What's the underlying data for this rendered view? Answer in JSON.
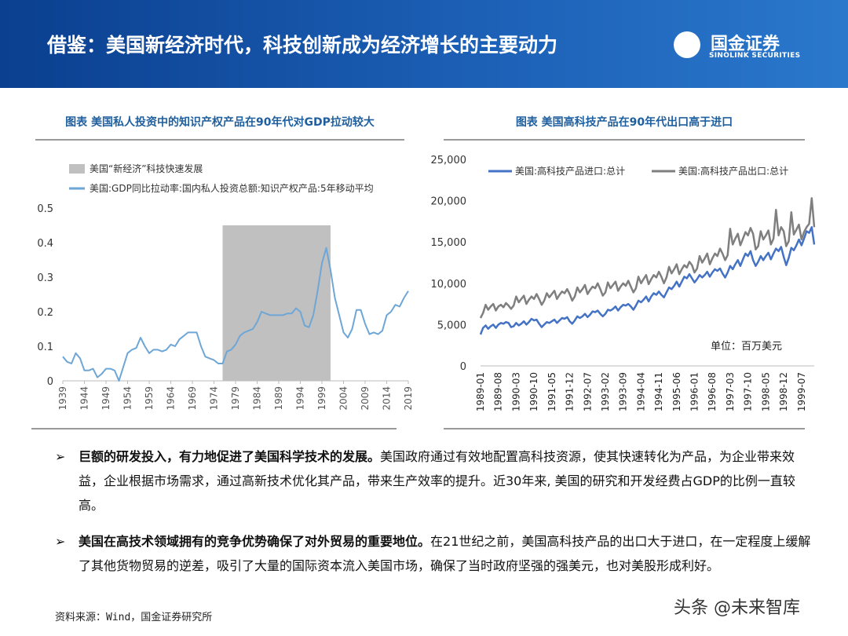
{
  "header": {
    "title": "借鉴：美国新经济时代，科技创新成为经济增长的主要动力",
    "logo_cn": "国金证券",
    "logo_en": "SINOLINK SECURITIES"
  },
  "chart_data": [
    {
      "type": "line",
      "title": "图表 美国私人投资中的知识产权产品在90年代对GDP拉动较大",
      "x": [
        1939,
        1940,
        1941,
        1942,
        1943,
        1944,
        1945,
        1946,
        1947,
        1948,
        1949,
        1950,
        1951,
        1952,
        1953,
        1954,
        1955,
        1956,
        1957,
        1958,
        1959,
        1960,
        1961,
        1962,
        1963,
        1964,
        1965,
        1966,
        1967,
        1968,
        1969,
        1970,
        1971,
        1972,
        1973,
        1974,
        1975,
        1976,
        1977,
        1978,
        1979,
        1980,
        1981,
        1982,
        1983,
        1984,
        1985,
        1986,
        1987,
        1988,
        1989,
        1990,
        1991,
        1992,
        1993,
        1994,
        1995,
        1996,
        1997,
        1998,
        1999,
        2000,
        2001,
        2002,
        2003,
        2004,
        2005,
        2006,
        2007,
        2008,
        2009,
        2010,
        2011,
        2012,
        2013,
        2014,
        2015,
        2016,
        2017,
        2018,
        2019
      ],
      "series": [
        {
          "name": "美国:GDP同比拉动率:国内私人投资总额:知识产权产品:5年移动平均",
          "color": "#6ea6d6",
          "values": [
            0.07,
            0.055,
            0.05,
            0.08,
            0.065,
            0.03,
            0.03,
            0.035,
            0.01,
            0.02,
            0.035,
            0.035,
            0.03,
            0.0,
            0.04,
            0.08,
            0.09,
            0.095,
            0.125,
            0.1,
            0.08,
            0.09,
            0.09,
            0.085,
            0.09,
            0.105,
            0.1,
            0.12,
            0.13,
            0.14,
            0.14,
            0.14,
            0.1,
            0.07,
            0.065,
            0.06,
            0.05,
            0.05,
            0.085,
            0.09,
            0.105,
            0.13,
            0.14,
            0.145,
            0.15,
            0.17,
            0.2,
            0.195,
            0.19,
            0.19,
            0.19,
            0.19,
            0.195,
            0.195,
            0.21,
            0.2,
            0.16,
            0.155,
            0.19,
            0.26,
            0.34,
            0.385,
            0.32,
            0.24,
            0.19,
            0.14,
            0.125,
            0.15,
            0.205,
            0.205,
            0.165,
            0.135,
            0.14,
            0.135,
            0.145,
            0.19,
            0.2,
            0.22,
            0.215,
            0.24,
            0.26
          ]
        }
      ],
      "shade": {
        "name": "美国“新经济”科技快速发展",
        "color": "#c0c0c0",
        "x": [
          1976,
          2001
        ],
        "y": [
          0,
          0.45
        ]
      },
      "xlim": [
        1939,
        2019
      ],
      "xticks": [
        1939,
        1944,
        1949,
        1954,
        1959,
        1964,
        1969,
        1974,
        1979,
        1984,
        1989,
        1994,
        1999,
        2004,
        2009,
        2014,
        2019
      ],
      "ylim": [
        0,
        0.5
      ],
      "yticks": [
        0,
        0.1,
        0.2,
        0.3,
        0.4,
        0.5
      ]
    },
    {
      "type": "line",
      "title": "图表 美国高科技产品在90年代出口高于进口",
      "categories": [
        "1989-01",
        null,
        null,
        null,
        null,
        null,
        null,
        "1989-08",
        null,
        null,
        null,
        null,
        null,
        null,
        "1990-03",
        null,
        null,
        null,
        null,
        null,
        null,
        "1990-10",
        null,
        null,
        null,
        null,
        null,
        null,
        "1991-05",
        null,
        null,
        null,
        null,
        null,
        null,
        "1991-12",
        null,
        null,
        null,
        null,
        null,
        null,
        "1992-07",
        null,
        null,
        null,
        null,
        null,
        null,
        "1993-02",
        null,
        null,
        null,
        null,
        null,
        null,
        "1993-09",
        null,
        null,
        null,
        null,
        null,
        null,
        "1994-04",
        null,
        null,
        null,
        null,
        null,
        null,
        "1994-11",
        null,
        null,
        null,
        null,
        null,
        null,
        "1995-06",
        null,
        null,
        null,
        null,
        null,
        null,
        "1996-01",
        null,
        null,
        null,
        null,
        null,
        null,
        "1996-08",
        null,
        null,
        null,
        null,
        null,
        null,
        "1997-03",
        null,
        null,
        null,
        null,
        null,
        null,
        "1997-10",
        null,
        null,
        null,
        null,
        null,
        null,
        "1998-05",
        null,
        null,
        null,
        null,
        null,
        null,
        "1998-12",
        null,
        null,
        null,
        null,
        null,
        null,
        "1999-07",
        null,
        null,
        null,
        null,
        null
      ],
      "series": [
        {
          "name": "美国:高科技产品进口:总计",
          "color": "#4472c4",
          "values": [
            3800,
            4600,
            4900,
            4500,
            4800,
            5000,
            4600,
            5000,
            5200,
            5100,
            5300,
            5200,
            4700,
            4800,
            5200,
            4900,
            5100,
            5400,
            5000,
            5300,
            5700,
            5500,
            5600,
            5100,
            4700,
            5000,
            5300,
            5200,
            5400,
            5600,
            5200,
            5500,
            5800,
            5700,
            5900,
            5400,
            5100,
            5500,
            6000,
            5800,
            6000,
            6300,
            5900,
            6200,
            6600,
            6500,
            6700,
            6300,
            6000,
            6300,
            6800,
            6700,
            6900,
            7200,
            6700,
            7100,
            7400,
            7300,
            7500,
            7200,
            6800,
            7300,
            7900,
            7700,
            8000,
            8400,
            7800,
            8400,
            8800,
            8600,
            9000,
            8600,
            8300,
            8900,
            9500,
            9300,
            9700,
            10200,
            9600,
            10200,
            10800,
            10600,
            11100,
            10600,
            10100,
            10500,
            11000,
            10700,
            11000,
            11400,
            10800,
            11300,
            11700,
            11500,
            11800,
            11200,
            10700,
            11300,
            12100,
            11700,
            12300,
            12800,
            12100,
            12900,
            13600,
            13300,
            13900,
            12800,
            12100,
            12600,
            13300,
            12800,
            13300,
            13700,
            12900,
            13600,
            14200,
            13900,
            14400,
            13200,
            12200,
            13100,
            14300,
            14000,
            14600,
            15300,
            14600,
            15400,
            16300,
            16100,
            16800,
            14700
          ]
        },
        {
          "name": "美国:高科技产品出口:总计",
          "color": "#7f7f7f",
          "values": [
            5800,
            6400,
            7400,
            6800,
            7200,
            7500,
            6700,
            7200,
            7400,
            7100,
            7600,
            7300,
            6900,
            7300,
            8400,
            7700,
            8100,
            8500,
            7500,
            8000,
            8400,
            8100,
            8700,
            8100,
            7400,
            7900,
            8800,
            8300,
            8700,
            9100,
            8100,
            8600,
            9000,
            8800,
            9300,
            8700,
            7900,
            8400,
            9500,
            8900,
            9300,
            9800,
            8700,
            9200,
            9600,
            9400,
            10000,
            9300,
            8500,
            8900,
            10100,
            9400,
            9800,
            10200,
            9100,
            9600,
            10000,
            9700,
            10300,
            9600,
            8900,
            9400,
            10800,
            10000,
            10500,
            11000,
            9900,
            10500,
            11000,
            10700,
            11400,
            10800,
            10000,
            10700,
            12000,
            11200,
            11700,
            12300,
            11100,
            11700,
            12200,
            11900,
            12600,
            12200,
            11300,
            11800,
            13300,
            12500,
            13000,
            13600,
            12300,
            13000,
            13600,
            13300,
            14200,
            13600,
            12800,
            13400,
            16600,
            14700,
            15400,
            16000,
            14600,
            15400,
            16200,
            15800,
            16700,
            16000,
            14100,
            14500,
            16300,
            15300,
            15800,
            16400,
            14700,
            15400,
            18900,
            15800,
            16800,
            16300,
            14500,
            15100,
            18600,
            15900,
            16500,
            17100,
            15300,
            16200,
            16800,
            17200,
            20300,
            16800
          ]
        }
      ],
      "ylim": [
        0,
        25000
      ],
      "yticks": [
        0,
        {
          "value": 5000,
          "label": "5,000"
        },
        {
          "value": 10000,
          "label": "10,000"
        },
        {
          "value": 15000,
          "label": "15,000"
        },
        {
          "value": 20000,
          "label": "20,000"
        },
        {
          "value": 25000,
          "label": "25,000"
        }
      ],
      "annotation": "单位：百万美元"
    }
  ],
  "bullets": [
    {
      "bold": "巨额的研发投入，有力地促进了美国科学技术的发展。",
      "text": "美国政府通过有效地配置高科技资源，使其快速转化为产品，为企业带来效益，企业根据市场需求，通过高新技术优化其产品，带来生产效率的提升。近30年来, 美国的研究和开发经费占GDP的比例一直较高。"
    },
    {
      "bold": "美国在高技术领域拥有的竞争优势确保了对外贸易的重要地位。",
      "text": "在21世纪之前，美国高科技产品的出口大于进口，在一定程度上缓解了其他货物贸易的逆差，吸引了大量的国际资本流入美国市场，确保了当时政府坚强的强美元，也对美股形成利好。"
    }
  ],
  "source": "资料来源：Wind，国金证券研究所",
  "watermark": "头条 @未来智库"
}
